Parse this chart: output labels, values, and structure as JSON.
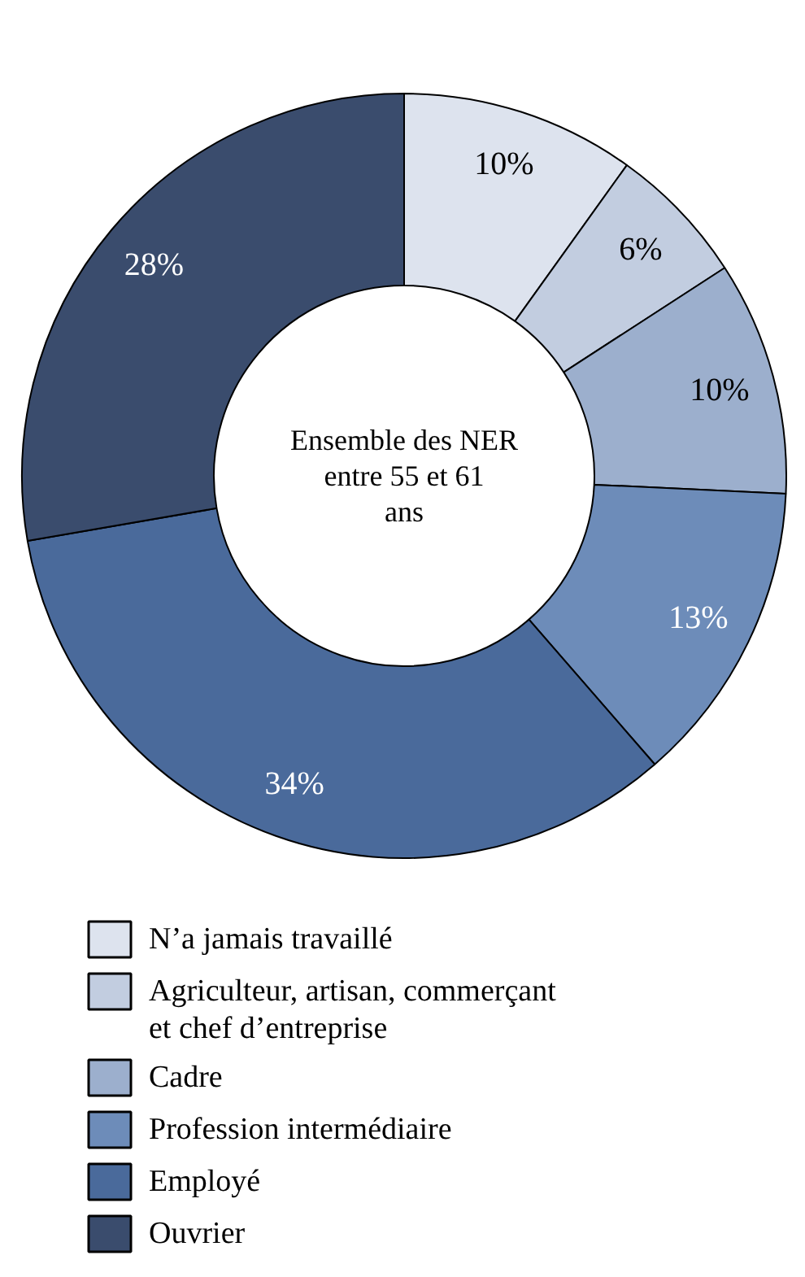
{
  "chart_data": {
    "type": "donut",
    "title": "Ensemble des NER entre 55 et 61 ans",
    "categories": [
      "N’a jamais travaillé",
      "Agriculteur, artisan, commerçant et chef d’entreprise",
      "Cadre",
      "Profession intermédiaire",
      "Employé",
      "Ouvrier"
    ],
    "values": [
      10,
      6,
      10,
      13,
      34,
      28
    ],
    "value_labels": [
      "10%",
      "6%",
      "10%",
      "13%",
      "34%",
      "28%"
    ],
    "colors": [
      "#dde3ee",
      "#c2cde0",
      "#9cafcd",
      "#6d8cb9",
      "#4a6a9b",
      "#3a4c6d"
    ],
    "legend": "bottom"
  }
}
